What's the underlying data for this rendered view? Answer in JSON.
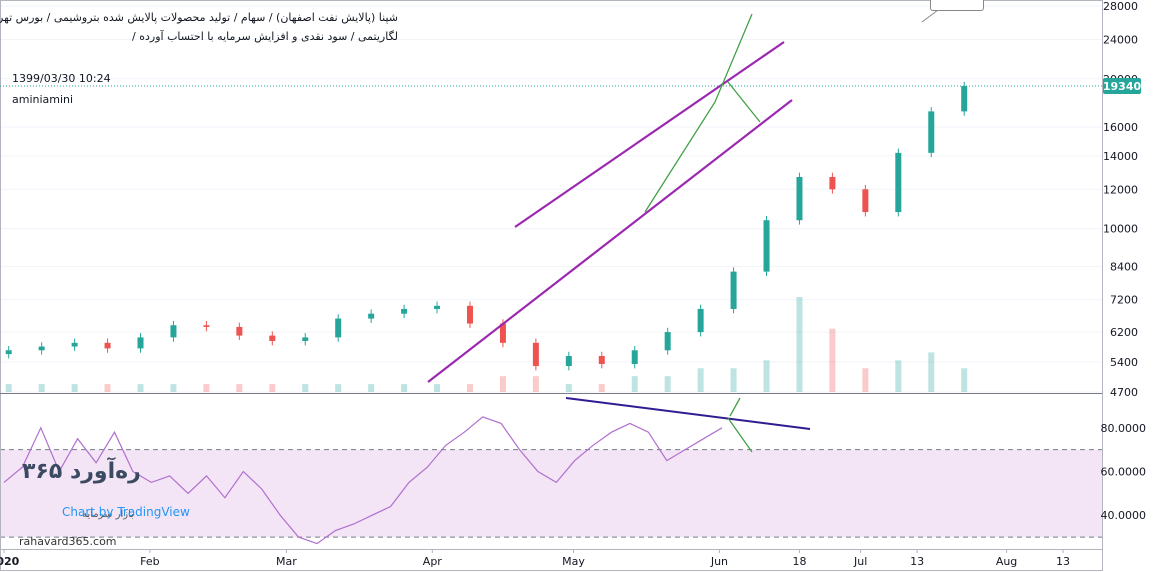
{
  "header": {
    "title_line1": "شپنا (پالایش نفت اصفهان) / سهام / تولید محصولات پالایش شده بتروشیمی / بورس تهران /",
    "title_line2": "لگاریتمی / سود نقدی و افزایش سرمایه با احتساب آورده /",
    "datestamp": "1399/03/30 10:24",
    "author": "aminiamini"
  },
  "watermark": {
    "logo_text": "ره‌آورد ۳۶۵",
    "sub_text": "بازار سرمایه",
    "site": "rahavard365.com",
    "tv_text": "Chart by TradingView"
  },
  "colors": {
    "up": "#26a69a",
    "down": "#ef5350",
    "channel": "#9c27b0",
    "trend": "#43a047",
    "rsi_line": "#b06fcf",
    "rsi_band": "#f3e5f5",
    "rsi_trendline": "#311b92",
    "last_price_bg": "#26a69a"
  },
  "chart_data": [
    {
      "type": "candlestick",
      "scale": "log",
      "ylim": [
        4700,
        28000
      ],
      "y_ticks": [
        28000,
        24000,
        20000,
        16000,
        14000,
        12000,
        10000,
        8400,
        7200,
        6200,
        5400,
        4700
      ],
      "x_ticks": [
        "2020",
        "Feb",
        "Mar",
        "Apr",
        "May",
        "Jun",
        "18",
        "Jul",
        "13",
        "Aug",
        "13"
      ],
      "last_price": "19340",
      "candles": [
        {
          "date": "2020-01-02",
          "o": 5600,
          "c": 5700
        },
        {
          "date": "2020-01-09",
          "o": 5700,
          "c": 5800
        },
        {
          "date": "2020-01-16",
          "o": 5800,
          "c": 5900
        },
        {
          "date": "2020-01-23",
          "o": 5900,
          "c": 5750
        },
        {
          "date": "2020-01-30",
          "o": 5750,
          "c": 6050
        },
        {
          "date": "2020-02-06",
          "o": 6050,
          "c": 6400
        },
        {
          "date": "2020-02-13",
          "o": 6400,
          "c": 6350
        },
        {
          "date": "2020-02-20",
          "o": 6350,
          "c": 6100
        },
        {
          "date": "2020-02-27",
          "o": 6100,
          "c": 5950
        },
        {
          "date": "2020-03-05",
          "o": 5950,
          "c": 6050
        },
        {
          "date": "2020-03-12",
          "o": 6050,
          "c": 6600
        },
        {
          "date": "2020-03-19",
          "o": 6600,
          "c": 6750
        },
        {
          "date": "2020-03-26",
          "o": 6750,
          "c": 6900
        },
        {
          "date": "2020-04-02",
          "o": 6900,
          "c": 7000
        },
        {
          "date": "2020-04-09",
          "o": 7000,
          "c": 6450
        },
        {
          "date": "2020-04-16",
          "o": 6450,
          "c": 5900
        },
        {
          "date": "2020-04-23",
          "o": 5900,
          "c": 5300
        },
        {
          "date": "2020-04-30",
          "o": 5300,
          "c": 5550
        },
        {
          "date": "2020-05-07",
          "o": 5550,
          "c": 5350
        },
        {
          "date": "2020-05-14",
          "o": 5350,
          "c": 5700
        },
        {
          "date": "2020-05-21",
          "o": 5700,
          "c": 6200
        },
        {
          "date": "2020-05-28",
          "o": 6200,
          "c": 6900
        },
        {
          "date": "2020-06-04",
          "o": 6900,
          "c": 8200
        },
        {
          "date": "2020-06-11",
          "o": 8200,
          "c": 10400
        },
        {
          "date": "2020-06-18",
          "o": 10400,
          "c": 12700
        },
        {
          "date": "2020-06-25",
          "o": 12700,
          "c": 12000
        },
        {
          "date": "2020-07-02",
          "o": 12000,
          "c": 10800
        },
        {
          "date": "2020-07-09",
          "o": 10800,
          "c": 14200
        },
        {
          "date": "2020-07-16",
          "o": 14200,
          "c": 17200
        },
        {
          "date": "2020-07-23",
          "o": 17200,
          "c": 19340
        }
      ],
      "volume": [
        1,
        1,
        1,
        1,
        1,
        1,
        1,
        1,
        1,
        1,
        1,
        1,
        1,
        1,
        1,
        2,
        2,
        1,
        1,
        2,
        2,
        3,
        3,
        4,
        12,
        8,
        3,
        4,
        5,
        3
      ]
    },
    {
      "type": "line",
      "name": "RSI",
      "ylim": [
        25,
        95
      ],
      "y_ticks": [
        "80.0000",
        "60.0000",
        "40.0000"
      ],
      "band": [
        30,
        70
      ],
      "values": [
        55,
        62,
        80,
        60,
        75,
        64,
        78,
        60,
        55,
        58,
        50,
        58,
        48,
        60,
        52,
        40,
        30,
        27,
        33,
        36,
        40,
        44,
        55,
        62,
        72,
        78,
        85,
        82,
        70,
        60,
        55,
        65,
        72,
        78,
        82,
        78,
        65,
        70,
        75,
        80
      ]
    }
  ]
}
